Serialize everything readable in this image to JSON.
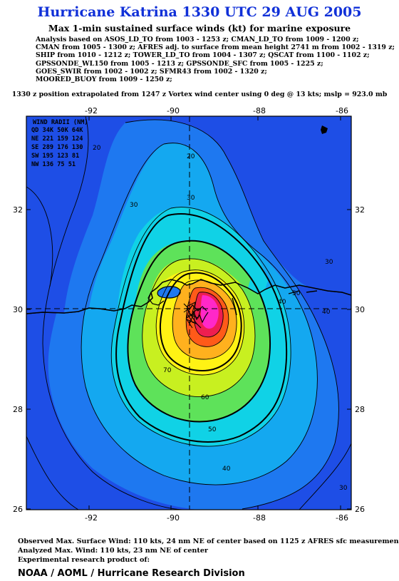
{
  "header": {
    "title": "Hurricane Katrina 1330 UTC 29 AUG 2005",
    "subtitle": "Max 1-min sustained surface winds (kt) for marine exposure",
    "analysis_lines": [
      "Analysis based on  ASOS_LD_TO from 1003 - 1253 z;  CMAN_LD_TO from 1009 - 1200 z;",
      "CMAN from 1005 - 1300 z;  AFRES adj. to surface from mean height 2741 m from 1002 - 1319 z;",
      "SHIP from 1010 - 1212 z;  TOWER_LD_TO from 1004 - 1307 z;  QSCAT from 1100 - 1102 z;",
      "GPSSONDE_WL150 from 1005 - 1213 z;  GPSSONDE_SFC from 1005 - 1225 z;",
      "GOES_SWIR from 1002 - 1002 z;  SFMR43 from 1002 - 1320 z;",
      "MOORED_BUOY from 1009 - 1250 z;"
    ],
    "extrapolation": "1330 z position extrapolated from 1247 z Vortex wind center using 0 deg @ 13 kts; mslp = 923.0 mb"
  },
  "map": {
    "lon_ticks": [
      "-92",
      "-90",
      "-88",
      "-86"
    ],
    "lat_ticks": [
      "32",
      "30",
      "28",
      "26"
    ],
    "lon_range": [
      -93.5,
      -85.5
    ],
    "lat_range": [
      25.9,
      33.8
    ],
    "center": {
      "lon": -89.6,
      "lat": 29.85
    },
    "contour_levels": [
      "20",
      "30",
      "40",
      "50",
      "60",
      "70"
    ],
    "colors": {
      "outer": "#1e4ee6",
      "ring_30": "#1e78f0",
      "ring_40": "#14a8f0",
      "ring_50": "#10d2e6",
      "ring_60": "#5ee25a",
      "ring_70": "#c8f020",
      "ring_80": "#fff214",
      "ring_90": "#ffb11e",
      "ring_100": "#ff5a19",
      "ring_110": "#ee1e50",
      "core": "#ff28c8",
      "land": "#ffff00"
    },
    "wind_radii": {
      "title": "WIND RADII (NM)",
      "header": "QD  34K  50K  64K",
      "rows": [
        "NE  221  159  124",
        "SE  289  176  130",
        "SW  195  123   81",
        "NW  136   75   51"
      ]
    }
  },
  "footer": {
    "observed": "Observed Max. Surface Wind: 110 kts, 24 nm NE of center based on 1125 z AFRES sfc measurement",
    "analyzed": "Analyzed Max. Wind: 110 kts, 23 nm NE of center",
    "experimental": "Experimental research product of:",
    "org": "NOAA / AOML / Hurricane Research Division"
  }
}
